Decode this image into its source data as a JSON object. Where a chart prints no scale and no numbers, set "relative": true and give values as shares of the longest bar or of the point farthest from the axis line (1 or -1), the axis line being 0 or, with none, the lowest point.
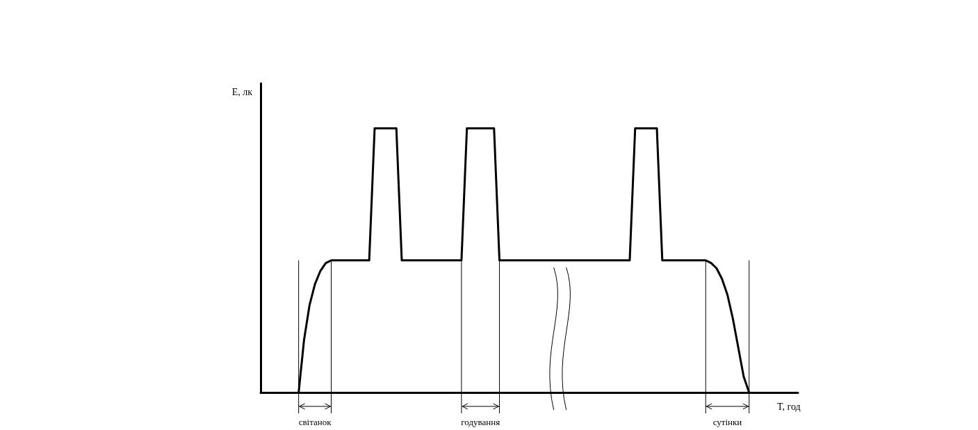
{
  "chart_data": {
    "type": "line",
    "relative": true,
    "xlabel": "T, год",
    "ylabel": "E, лк",
    "categories": [
      null,
      null,
      null,
      null,
      null,
      null,
      null,
      null,
      null,
      null,
      null,
      null,
      null,
      null,
      null,
      null,
      null,
      null,
      null,
      null,
      null,
      null,
      null,
      null,
      null,
      null,
      null,
      null,
      null,
      null,
      null,
      null,
      null,
      null,
      null,
      null,
      null,
      null,
      null,
      null,
      null,
      null,
      null,
      null,
      null,
      null,
      null,
      null,
      null,
      null,
      null,
      null,
      null,
      null,
      null,
      null,
      null,
      null,
      null,
      null,
      null,
      null,
      null,
      null,
      null,
      null,
      null,
      null,
      null,
      null,
      null,
      null,
      null,
      null,
      null,
      null,
      null,
      null,
      null,
      null,
      null,
      null,
      null,
      null,
      null,
      null,
      null,
      null,
      null,
      null,
      null,
      null,
      null,
      null,
      null,
      null,
      null,
      null,
      null,
      null
    ],
    "series": [
      {
        "color": "#000000",
        "values": [
          null,
          null,
          null,
          null,
          null,
          null,
          null,
          0,
          0.2,
          0.33,
          0.41,
          0.46,
          0.49,
          0.5,
          0.5,
          0.5,
          0.5,
          0.5,
          0.5,
          0.5,
          0.5,
          1,
          1,
          1,
          1,
          1,
          0.5,
          0.5,
          0.5,
          0.5,
          0.5,
          0.5,
          0.5,
          0.5,
          0.5,
          0.5,
          0.5,
          0.5,
          1,
          1,
          1,
          1,
          1,
          1,
          0.5,
          0.5,
          0.5,
          0.5,
          0.5,
          0.5,
          0.5,
          0.5,
          0.5,
          0.5,
          0.5,
          0.5,
          0.5,
          0.5,
          0.5,
          0.5,
          0.5,
          0.5,
          0.5,
          0.5,
          0.5,
          0.5,
          0.5,
          0.5,
          0.5,
          1,
          1,
          1,
          1,
          1,
          0.5,
          0.5,
          0.5,
          0.5,
          0.5,
          0.5,
          0.5,
          0.5,
          0.5,
          0.49,
          0.47,
          0.43,
          0.37,
          0.28,
          0.17,
          0.06,
          0,
          null,
          null,
          null,
          null,
          null,
          null,
          null,
          null,
          null
        ]
      }
    ],
    "annotations": [
      "світанок",
      "годування",
      "сутінки"
    ],
    "marker": "none",
    "line_style": "solid"
  }
}
